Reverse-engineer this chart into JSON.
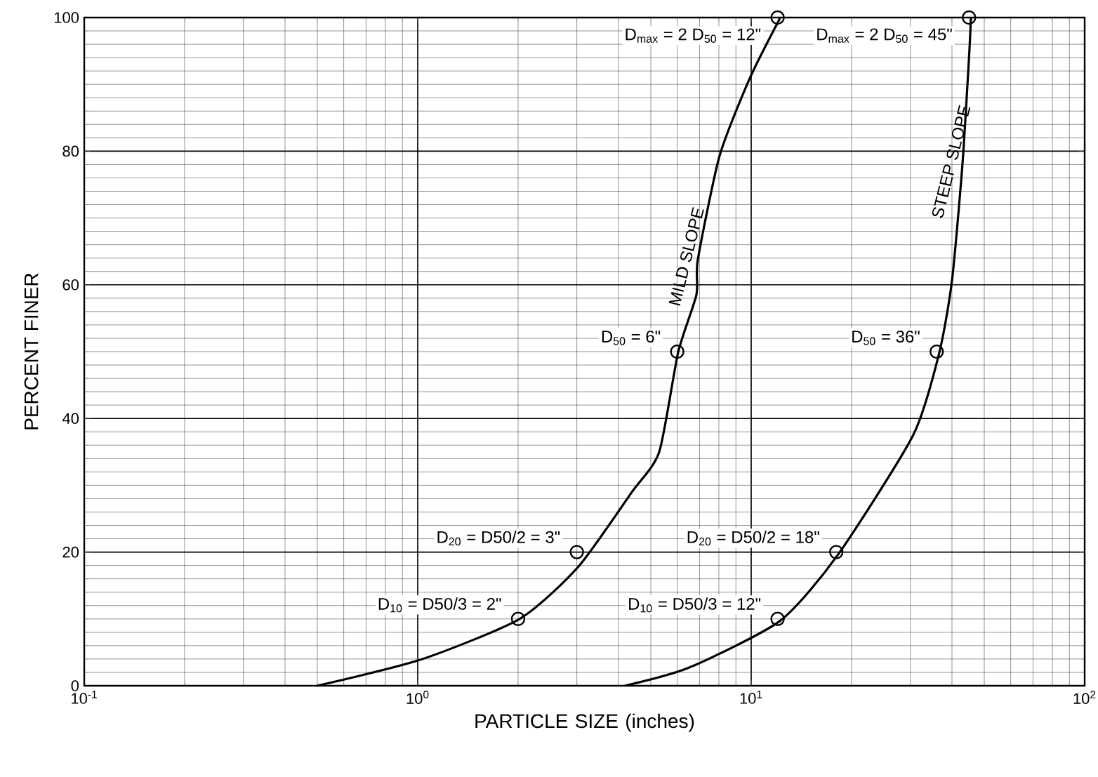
{
  "chart_data": {
    "type": "line",
    "xlabel": "PARTICLE SIZE (inches)",
    "ylabel": "PERCENT FINER",
    "log": "x",
    "grid": true,
    "xlim": [
      0.1,
      100
    ],
    "xticks": [
      {
        "value": 0.1,
        "label": "10$^{-1}$"
      },
      {
        "value": 1,
        "label": "10$^{0}$"
      },
      {
        "value": 10,
        "label": "10$^{1}$"
      },
      {
        "value": 100,
        "label": "10$^{2}$"
      }
    ],
    "ylim": [
      0,
      100
    ],
    "yticks": [
      0,
      20,
      40,
      60,
      80,
      100
    ],
    "series": [
      {
        "name": "MILD SLOPE",
        "marker": "none",
        "color": "#000000",
        "x": [
          0.5,
          1.02,
          2.02,
          3.03,
          4.39,
          5.3,
          6.04,
          6.85,
          6.92,
          8.04,
          9.9,
          12.2
        ],
        "values": [
          0,
          3.9,
          10,
          17.8,
          29,
          35,
          49.9,
          58.5,
          63.8,
          79.3,
          90.9,
          99.9
        ]
      },
      {
        "name": "STEEP SLOPE",
        "marker": "none",
        "color": "#000000",
        "x": [
          4.18,
          6.5,
          12.2,
          18.2,
          30.6,
          36.6,
          40,
          43,
          45,
          45.6
        ],
        "values": [
          0,
          2.7,
          9.7,
          19.6,
          37.5,
          49.7,
          60.6,
          78,
          94,
          100
        ]
      },
      {
        "type": "scatter",
        "marker": "circle",
        "color": "#000000",
        "x": [
          2,
          3,
          6,
          12,
          12,
          18,
          36,
          45
        ],
        "values": [
          10,
          20,
          50,
          100,
          10,
          20,
          50,
          100
        ]
      }
    ],
    "annotations": [
      {
        "text": "D$_{10}$ = D50/3 = 2\"",
        "x": 2,
        "y": 10
      },
      {
        "text": "D$_{20}$ = D50/2 = 3\"",
        "x": 3,
        "y": 20
      },
      {
        "text": "D$_{50}$ = 6\"",
        "x": 6,
        "y": 50
      },
      {
        "text": "D$_{max}$ = 2 D$_{50}$ = 12\"",
        "x": 12,
        "y": 100
      },
      {
        "text": "D$_{10}$ = D50/3 = 12\"",
        "x": 12,
        "y": 10
      },
      {
        "text": "D$_{20}$ = D50/2 = 18\"",
        "x": 18,
        "y": 20
      },
      {
        "text": "D$_{50}$ = 36\"",
        "x": 36,
        "y": 50
      },
      {
        "text": "D$_{max}$ = 2 D$_{50}$ = 45\"",
        "x": 45,
        "y": 100
      }
    ]
  }
}
